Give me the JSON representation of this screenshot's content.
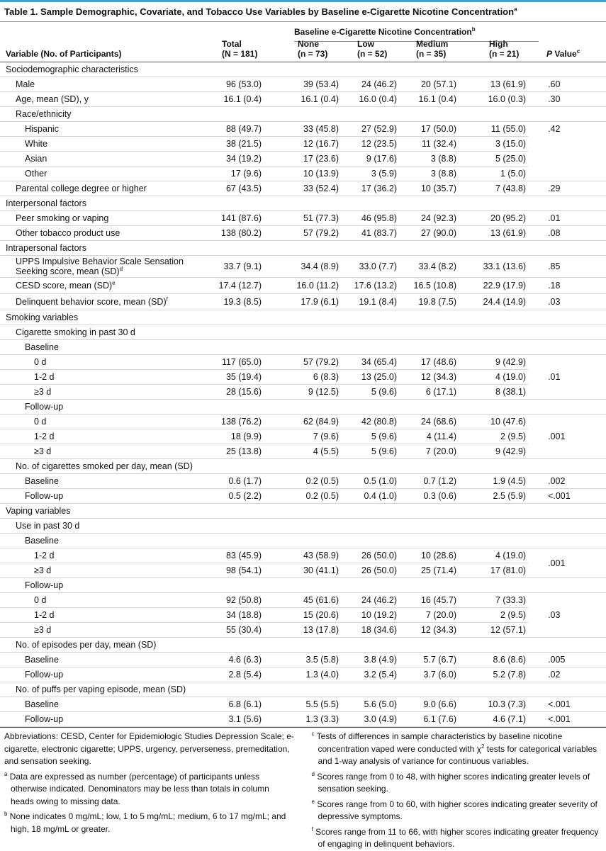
{
  "title": "Table 1. Sample Demographic, Covariate, and Tobacco Use Variables by Baseline e-Cigarette Nicotine Concentration",
  "title_sup": "a",
  "header": {
    "variable": "Variable (No. of Participants)",
    "group": "Baseline e-Cigarette Nicotine Concentration",
    "group_sup": "b",
    "columns": [
      {
        "name": "Total",
        "n": "(N = 181)"
      },
      {
        "name": "None",
        "n": "(n = 73)"
      },
      {
        "name": "Low",
        "n": "(n = 52)"
      },
      {
        "name": "Medium",
        "n": "(n = 35)"
      },
      {
        "name": "High",
        "n": "(n = 21)"
      }
    ],
    "p_italic": "P",
    "p_text": "Value",
    "p_sup": "c"
  },
  "rows": [
    {
      "label": "Sociodemographic characteristics"
    },
    {
      "label": "Male",
      "cells": [
        "96 (53.0)",
        "39 (53.4)",
        "24 (46.2)",
        "20 (57.1)",
        "13 (61.9)"
      ],
      "p": ".60"
    },
    {
      "label": "Age, mean (SD), y",
      "cells": [
        "16.1 (0.4)",
        "16.1 (0.4)",
        "16.0 (0.4)",
        "16.1 (0.4)",
        "16.0 (0.3)"
      ],
      "p": ".30"
    },
    {
      "label": "Race/ethnicity"
    },
    {
      "label": "Hispanic",
      "cells": [
        "88 (49.7)",
        "33 (45.8)",
        "27 (52.9)",
        "17 (50.0)",
        "11 (55.0)"
      ],
      "p": ".42"
    },
    {
      "label": "White",
      "cells": [
        "38 (21.5)",
        "12 (16.7)",
        "12 (23.5)",
        "11 (32.4)",
        "3 (15.0)"
      ]
    },
    {
      "label": "Asian",
      "cells": [
        "34 (19.2)",
        "17 (23.6)",
        "9 (17.6)",
        "3 (8.8)",
        "5 (25.0)"
      ]
    },
    {
      "label": "Other",
      "cells": [
        "17 (9.6)",
        "10 (13.9)",
        "3 (5.9)",
        "3 (8.8)",
        "1 (5.0)"
      ]
    },
    {
      "label": "Parental college degree or higher",
      "cells": [
        "67 (43.5)",
        "33 (52.4)",
        "17 (36.2)",
        "10 (35.7)",
        "7 (43.8)"
      ],
      "p": ".29"
    },
    {
      "label": "Interpersonal factors"
    },
    {
      "label": "Peer smoking or vaping",
      "cells": [
        "141 (87.6)",
        "51 (77.3)",
        "46 (95.8)",
        "24 (92.3)",
        "20 (95.2)"
      ],
      "p": ".01"
    },
    {
      "label": "Other tobacco product use",
      "cells": [
        "138 (80.2)",
        "57 (79.2)",
        "41 (83.7)",
        "27 (90.0)",
        "13 (61.9)"
      ],
      "p": ".08"
    },
    {
      "label": "Intrapersonal factors"
    },
    {
      "label": "UPPS Impulsive Behavior Scale Sensation Seeking score, mean (SD)",
      "sup": "d",
      "cells": [
        "33.7 (9.1)",
        "34.4 (8.9)",
        "33.0 (7.7)",
        "33.4 (8.2)",
        "33.1 (13.6)"
      ],
      "p": ".85"
    },
    {
      "label": "CESD score, mean (SD)",
      "sup": "e",
      "cells": [
        "17.4 (12.7)",
        "16.0 (11.2)",
        "17.6 (13.2)",
        "16.5 (10.8)",
        "22.9 (17.9)"
      ],
      "p": ".18"
    },
    {
      "label": "Delinquent behavior score, mean (SD)",
      "sup": "f",
      "cells": [
        "19.3 (8.5)",
        "17.9 (6.1)",
        "19.1 (8.4)",
        "19.8 (7.5)",
        "24.4 (14.9)"
      ],
      "p": ".03"
    },
    {
      "label": "Smoking variables"
    },
    {
      "label": "Cigarette smoking in past 30 d"
    },
    {
      "label": "Baseline"
    },
    {
      "label": "0 d",
      "cells": [
        "117 (65.0)",
        "57 (79.2)",
        "34 (65.4)",
        "17 (48.6)",
        "9 (42.9)"
      ],
      "p": ".01"
    },
    {
      "label": "1-2 d",
      "cells": [
        "35 (19.4)",
        "6 (8.3)",
        "13 (25.0)",
        "12 (34.3)",
        "4 (19.0)"
      ]
    },
    {
      "label": "≥3 d",
      "cells": [
        "28 (15.6)",
        "9 (12.5)",
        "5 (9.6)",
        "6 (17.1)",
        "8 (38.1)"
      ]
    },
    {
      "label": "Follow-up"
    },
    {
      "label": "0 d",
      "cells": [
        "138 (76.2)",
        "62 (84.9)",
        "42 (80.8)",
        "24 (68.6)",
        "10 (47.6)"
      ],
      "p": ".001"
    },
    {
      "label": "1-2 d",
      "cells": [
        "18 (9.9)",
        "7 (9.6)",
        "5 (9.6)",
        "4 (11.4)",
        "2 (9.5)"
      ]
    },
    {
      "label": "≥3 d",
      "cells": [
        "25 (13.8)",
        "4 (5.5)",
        "5 (9.6)",
        "7 (20.0)",
        "9 (42.9)"
      ]
    },
    {
      "label": "No. of cigarettes smoked per day, mean (SD)"
    },
    {
      "label": "Baseline",
      "cells": [
        "0.6 (1.7)",
        "0.2 (0.5)",
        "0.5 (1.0)",
        "0.7 (1.2)",
        "1.9 (4.5)"
      ],
      "p": ".002"
    },
    {
      "label": "Follow-up",
      "cells": [
        "0.5 (2.2)",
        "0.2 (0.5)",
        "0.4 (1.0)",
        "0.3 (0.6)",
        "2.5 (5.9)"
      ],
      "p": "<.001"
    },
    {
      "label": "Vaping variables"
    },
    {
      "label": "Use in past 30 d"
    },
    {
      "label": "Baseline"
    },
    {
      "label": "1-2 d",
      "cells": [
        "83 (45.9)",
        "43 (58.9)",
        "26 (50.0)",
        "10 (28.6)",
        "4 (19.0)"
      ],
      "p": ".001"
    },
    {
      "label": "≥3 d",
      "cells": [
        "98 (54.1)",
        "30 (41.1)",
        "26 (50.0)",
        "25 (71.4)",
        "17 (81.0)"
      ]
    },
    {
      "label": "Follow-up"
    },
    {
      "label": "0 d",
      "cells": [
        "92 (50.8)",
        "45 (61.6)",
        "24 (46.2)",
        "16 (45.7)",
        "7 (33.3)"
      ],
      "p": ".03"
    },
    {
      "label": "1-2 d",
      "cells": [
        "34 (18.8)",
        "15 (20.6)",
        "10 (19.2)",
        "7 (20.0)",
        "2 (9.5)"
      ]
    },
    {
      "label": "≥3 d",
      "cells": [
        "55 (30.4)",
        "13 (17.8)",
        "18 (34.6)",
        "12 (34.3)",
        "12 (57.1)"
      ]
    },
    {
      "label": "No. of episodes per day, mean (SD)"
    },
    {
      "label": "Baseline",
      "cells": [
        "4.6 (6.3)",
        "3.5 (5.8)",
        "3.8 (4.9)",
        "5.7 (6.7)",
        "8.6 (8.6)"
      ],
      "p": ".005"
    },
    {
      "label": "Follow-up",
      "cells": [
        "2.8 (5.4)",
        "1.3 (4.0)",
        "3.2 (5.4)",
        "3.7 (6.0)",
        "5.2 (7.8)"
      ],
      "p": ".02"
    },
    {
      "label": "No. of puffs per vaping episode, mean (SD)"
    },
    {
      "label": "Baseline",
      "cells": [
        "6.8 (6.1)",
        "5.5 (5.5)",
        "5.6 (5.0)",
        "9.0 (6.6)",
        "10.3 (7.3)"
      ],
      "p": "<.001"
    },
    {
      "label": "Follow-up",
      "cells": [
        "3.1 (5.6)",
        "1.3 (3.3)",
        "3.0 (4.9)",
        "6.1 (7.6)",
        "4.6 (7.1)"
      ],
      "p": "<.001"
    }
  ],
  "footnotes": {
    "abbreviations": "Abbreviations: CESD, Center for Epidemiologic Studies Depression Scale; e-cigarette, electronic cigarette; UPPS, urgency, perverseness, premeditation, and sensation seeking.",
    "notes": [
      {
        "mark": "a",
        "text": "Data are expressed as number (percentage) of participants unless otherwise indicated. Denominators may be less than totals in column heads owing to missing data."
      },
      {
        "mark": "b",
        "text": "None indicates 0 mg/mL; low, 1 to 5 mg/mL; medium, 6 to 17 mg/mL; and high, 18 mg/mL or greater."
      },
      {
        "mark": "c",
        "text": "Tests of differences in sample characteristics by baseline nicotine concentration vaped were conducted with χ",
        "sup": "2",
        "text_end": "tests for categorical variables and 1-way analysis of variance for continuous variables."
      },
      {
        "mark": "d",
        "text": "Scores range from 0 to 48, with higher scores indicating greater levels of sensation seeking."
      },
      {
        "mark": "e",
        "text": "Scores range from 0 to 60, with higher scores indicating greater severity of depressive symptoms."
      },
      {
        "mark": "f",
        "text": "Scores range from 11 to 66, with higher scores indicating greater frequency of engaging in delinquent behaviors."
      }
    ]
  }
}
